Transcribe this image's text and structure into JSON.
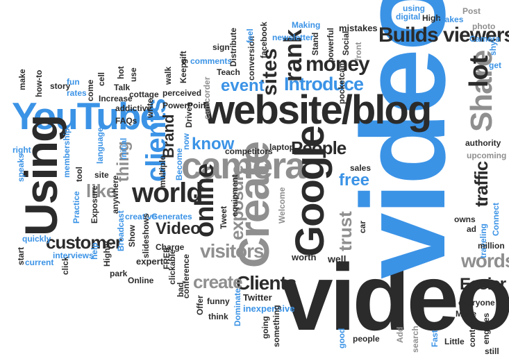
{
  "colors": {
    "dark": "#2b2b2b",
    "blue": "#3b93e6",
    "gray": "#8f8f8f",
    "background": "#ffffff"
  },
  "words": {
    "videos": "videos",
    "video": "video",
    "website_blog": "website/blog",
    "camera": "camera",
    "youtube": "YouTube",
    "using": "Using",
    "create": "Create",
    "google": "Google",
    "share": "Share",
    "builds_viewers": "Builds viewers",
    "lot": "lot",
    "clients": "clients",
    "clients2": "Clients",
    "world": "world",
    "online": "online",
    "rank": "rank",
    "money": "money",
    "introduce": "Introduce",
    "sites": "sites",
    "people": "People",
    "know": "know",
    "event": "event",
    "exposure": "exposure",
    "visitors": "visitors",
    "create2": "create",
    "customer": "customer",
    "free": "free",
    "trust": "trust",
    "words": "words",
    "easier": "Easier",
    "traffic": "traffic",
    "video2": "Video",
    "like": "like",
    "thing": "thing",
    "brand": "Brand",
    "well": "well",
    "people2": "people",
    "dominate": "Dominate",
    "inexpensive": "inexpensive",
    "twitter": "Twitter",
    "funny": "funny",
    "think": "think",
    "offer": "Offer",
    "make": "Make",
    "everyone": "everyone",
    "content": "content",
    "engines": "engines",
    "still": "still",
    "little": "Little",
    "fast": "Fast",
    "search": "search",
    "add": "Add",
    "good": "good",
    "something": "something",
    "going": "going",
    "online2": "Online",
    "bad": "bad",
    "conference": "conference",
    "clickable": "clickable",
    "free2": "FREE",
    "charge": "Charge",
    "expert": "expert",
    "park": "park",
    "highly": "Highly",
    "help": "help",
    "click": "click",
    "current": "current",
    "interviews": "interviews",
    "start": "start",
    "quickly": "quickly",
    "practice": "Practice",
    "exposure2": "Exposure",
    "tool": "tool",
    "anywhere": "anywhere",
    "broadcast": "Broadcast",
    "show": "Show",
    "creative": "creative",
    "generates": "Generates",
    "slideshows": "slideshows",
    "site": "site",
    "membership": "membership",
    "language": "language",
    "initial": "initial",
    "speaks": "speaks",
    "right": "right",
    "faqs": "FAQs",
    "addictive": "addictive",
    "write": "write",
    "cottage": "cottage",
    "powerpoint": "PowerPoint",
    "perceived": "perceived",
    "now": "now",
    "drives": "Drives",
    "multiple": "multiple",
    "become": "Become",
    "competitors": "competitors",
    "laptop": "laptop",
    "tweet": "Tweet",
    "equipment": "equipment",
    "welcome": "Welcome",
    "worth": "worth",
    "sales": "sales",
    "car": "car",
    "owns": "owns",
    "ad": "ad",
    "upcoming": "upcoming",
    "authority": "authority",
    "connect": "Connect",
    "traveling": "traveling",
    "million": "million",
    "make2": "make",
    "how_to": "how-to",
    "story": "story",
    "fun": "fun",
    "rates": "rates",
    "come": "come",
    "cell": "cell",
    "talk": "Talk",
    "hot": "hot",
    "increase": "Increase",
    "use": "use",
    "walk": "walk",
    "keeps": "Keeps",
    "gift": "gift",
    "comments": "comments",
    "sign": "sign",
    "teach": "Teach",
    "camcorder": "camcorder",
    "distribute": "Distribute",
    "conversion": "conversion",
    "feel": "feel",
    "facebook": "facebook",
    "newsletter": "newsletter",
    "making": "Making",
    "stand": "Stand",
    "powerful": "powerful",
    "pocketcam": "pocketcam",
    "social": "Social",
    "mistakes": "mistakes",
    "front": "front",
    "digital": "digital",
    "using2": "using",
    "high": "High",
    "makes": "makes",
    "post": "Post",
    "photo": "photo",
    "camera2": "Camera",
    "shy": "shy",
    "get": "get"
  }
}
